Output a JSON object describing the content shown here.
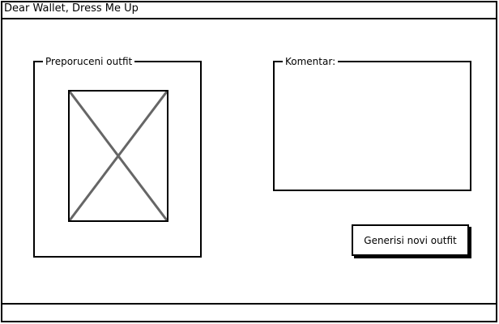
{
  "window": {
    "title": "Dear Wallet, Dress Me Up"
  },
  "outfit_panel": {
    "label": "Preporuceni outfit",
    "image_icon": "image-placeholder-icon"
  },
  "comment_panel": {
    "label": "Komentar:"
  },
  "actions": {
    "generate_label": "Generisi novi outfit"
  }
}
